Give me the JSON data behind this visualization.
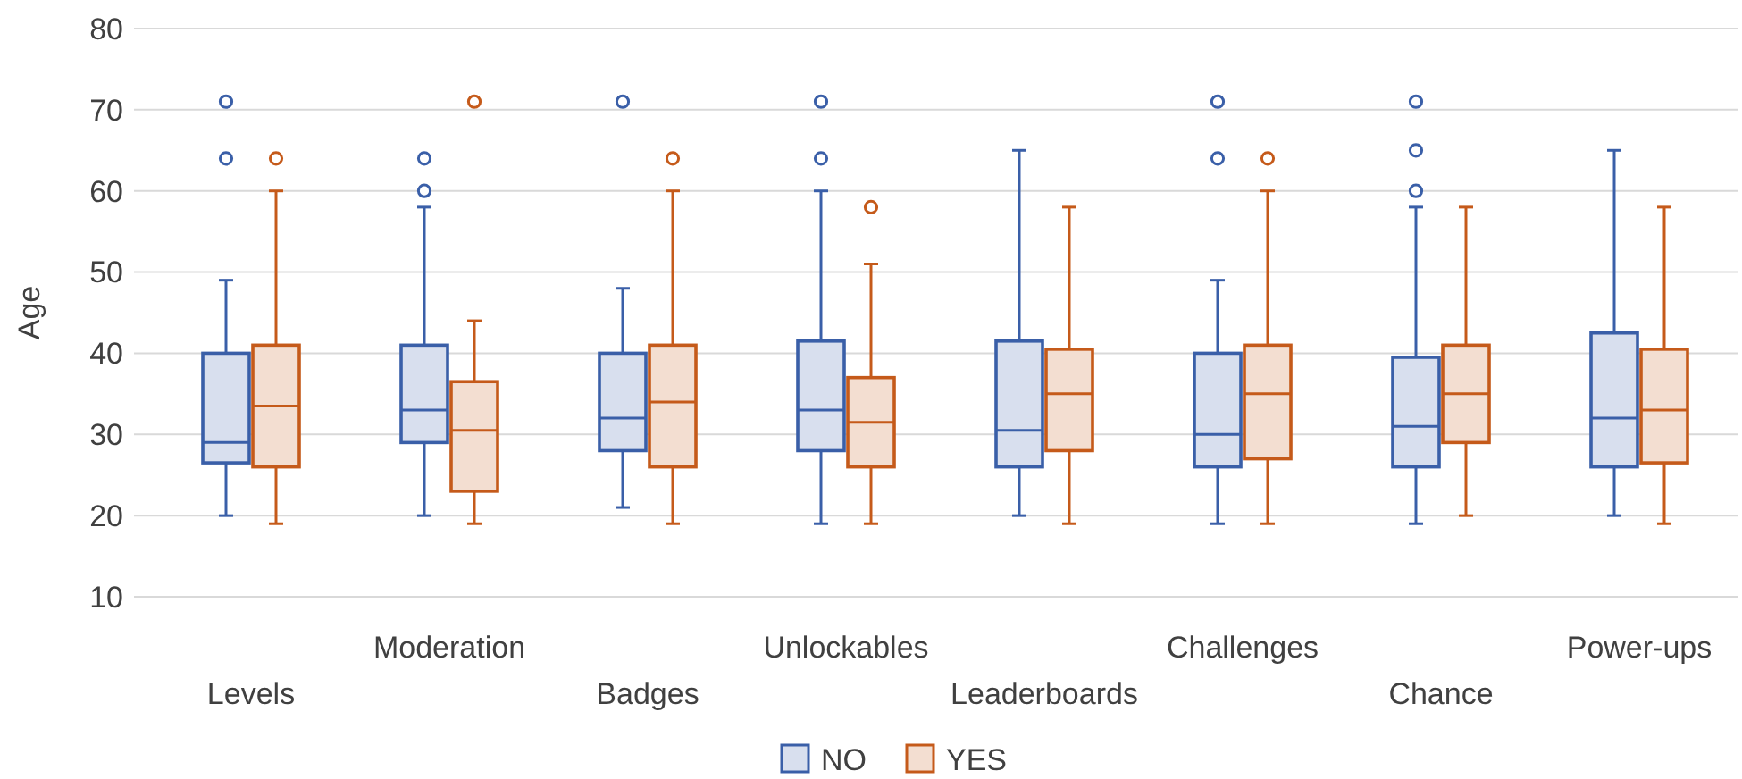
{
  "chart_data": {
    "type": "box",
    "ylabel": "Age",
    "categories": [
      "Levels",
      "Moderation",
      "Badges",
      "Unlockables",
      "Leaderboards",
      "Challenges",
      "Chance",
      "Power-ups"
    ],
    "ylim": [
      10,
      80
    ],
    "yticks": [
      10,
      20,
      30,
      40,
      50,
      60,
      70,
      80
    ],
    "grid": "y",
    "legend": "bottom",
    "series": [
      {
        "name": "NO",
        "color": "#3a5fa8",
        "boxes": [
          {
            "low": 20,
            "q1": 26.5,
            "median": 29,
            "q3": 40,
            "high": 49,
            "outliers": [
              64,
              71
            ]
          },
          {
            "low": 20,
            "q1": 29,
            "median": 33,
            "q3": 41,
            "high": 58,
            "outliers": [
              60,
              64
            ]
          },
          {
            "low": 21,
            "q1": 28,
            "median": 32,
            "q3": 40,
            "high": 48,
            "outliers": [
              71
            ]
          },
          {
            "low": 19,
            "q1": 28,
            "median": 33,
            "q3": 41.5,
            "high": 60,
            "outliers": [
              64,
              71
            ]
          },
          {
            "low": 20,
            "q1": 26,
            "median": 30.5,
            "q3": 41.5,
            "high": 65
          },
          {
            "low": 19,
            "q1": 26,
            "median": 30,
            "q3": 40,
            "high": 49,
            "outliers": [
              64,
              71
            ]
          },
          {
            "low": 19,
            "q1": 26,
            "median": 31,
            "q3": 39.5,
            "high": 58,
            "outliers": [
              60,
              65,
              71
            ]
          },
          {
            "low": 20,
            "q1": 26,
            "median": 32,
            "q3": 42.5,
            "high": 65
          }
        ]
      },
      {
        "name": "YES",
        "color": "#c55a1a",
        "boxes": [
          {
            "low": 19,
            "q1": 26,
            "median": 33.5,
            "q3": 41,
            "high": 60,
            "outliers": [
              64
            ]
          },
          {
            "low": 19,
            "q1": 23,
            "median": 30.5,
            "q3": 36.5,
            "high": 44,
            "outliers": [
              71
            ]
          },
          {
            "low": 19,
            "q1": 26,
            "median": 34,
            "q3": 41,
            "high": 60,
            "outliers": [
              64
            ]
          },
          {
            "low": 19,
            "q1": 26,
            "median": 31.5,
            "q3": 37,
            "high": 51,
            "outliers": [
              58
            ]
          },
          {
            "low": 19,
            "q1": 28,
            "median": 35,
            "q3": 40.5,
            "high": 58
          },
          {
            "low": 19,
            "q1": 27,
            "median": 35,
            "q3": 41,
            "high": 60,
            "outliers": [
              64
            ]
          },
          {
            "low": 20,
            "q1": 29,
            "median": 35,
            "q3": 41,
            "high": 58
          },
          {
            "low": 19,
            "q1": 26.5,
            "median": 33,
            "q3": 40.5,
            "high": 58
          }
        ]
      }
    ]
  }
}
